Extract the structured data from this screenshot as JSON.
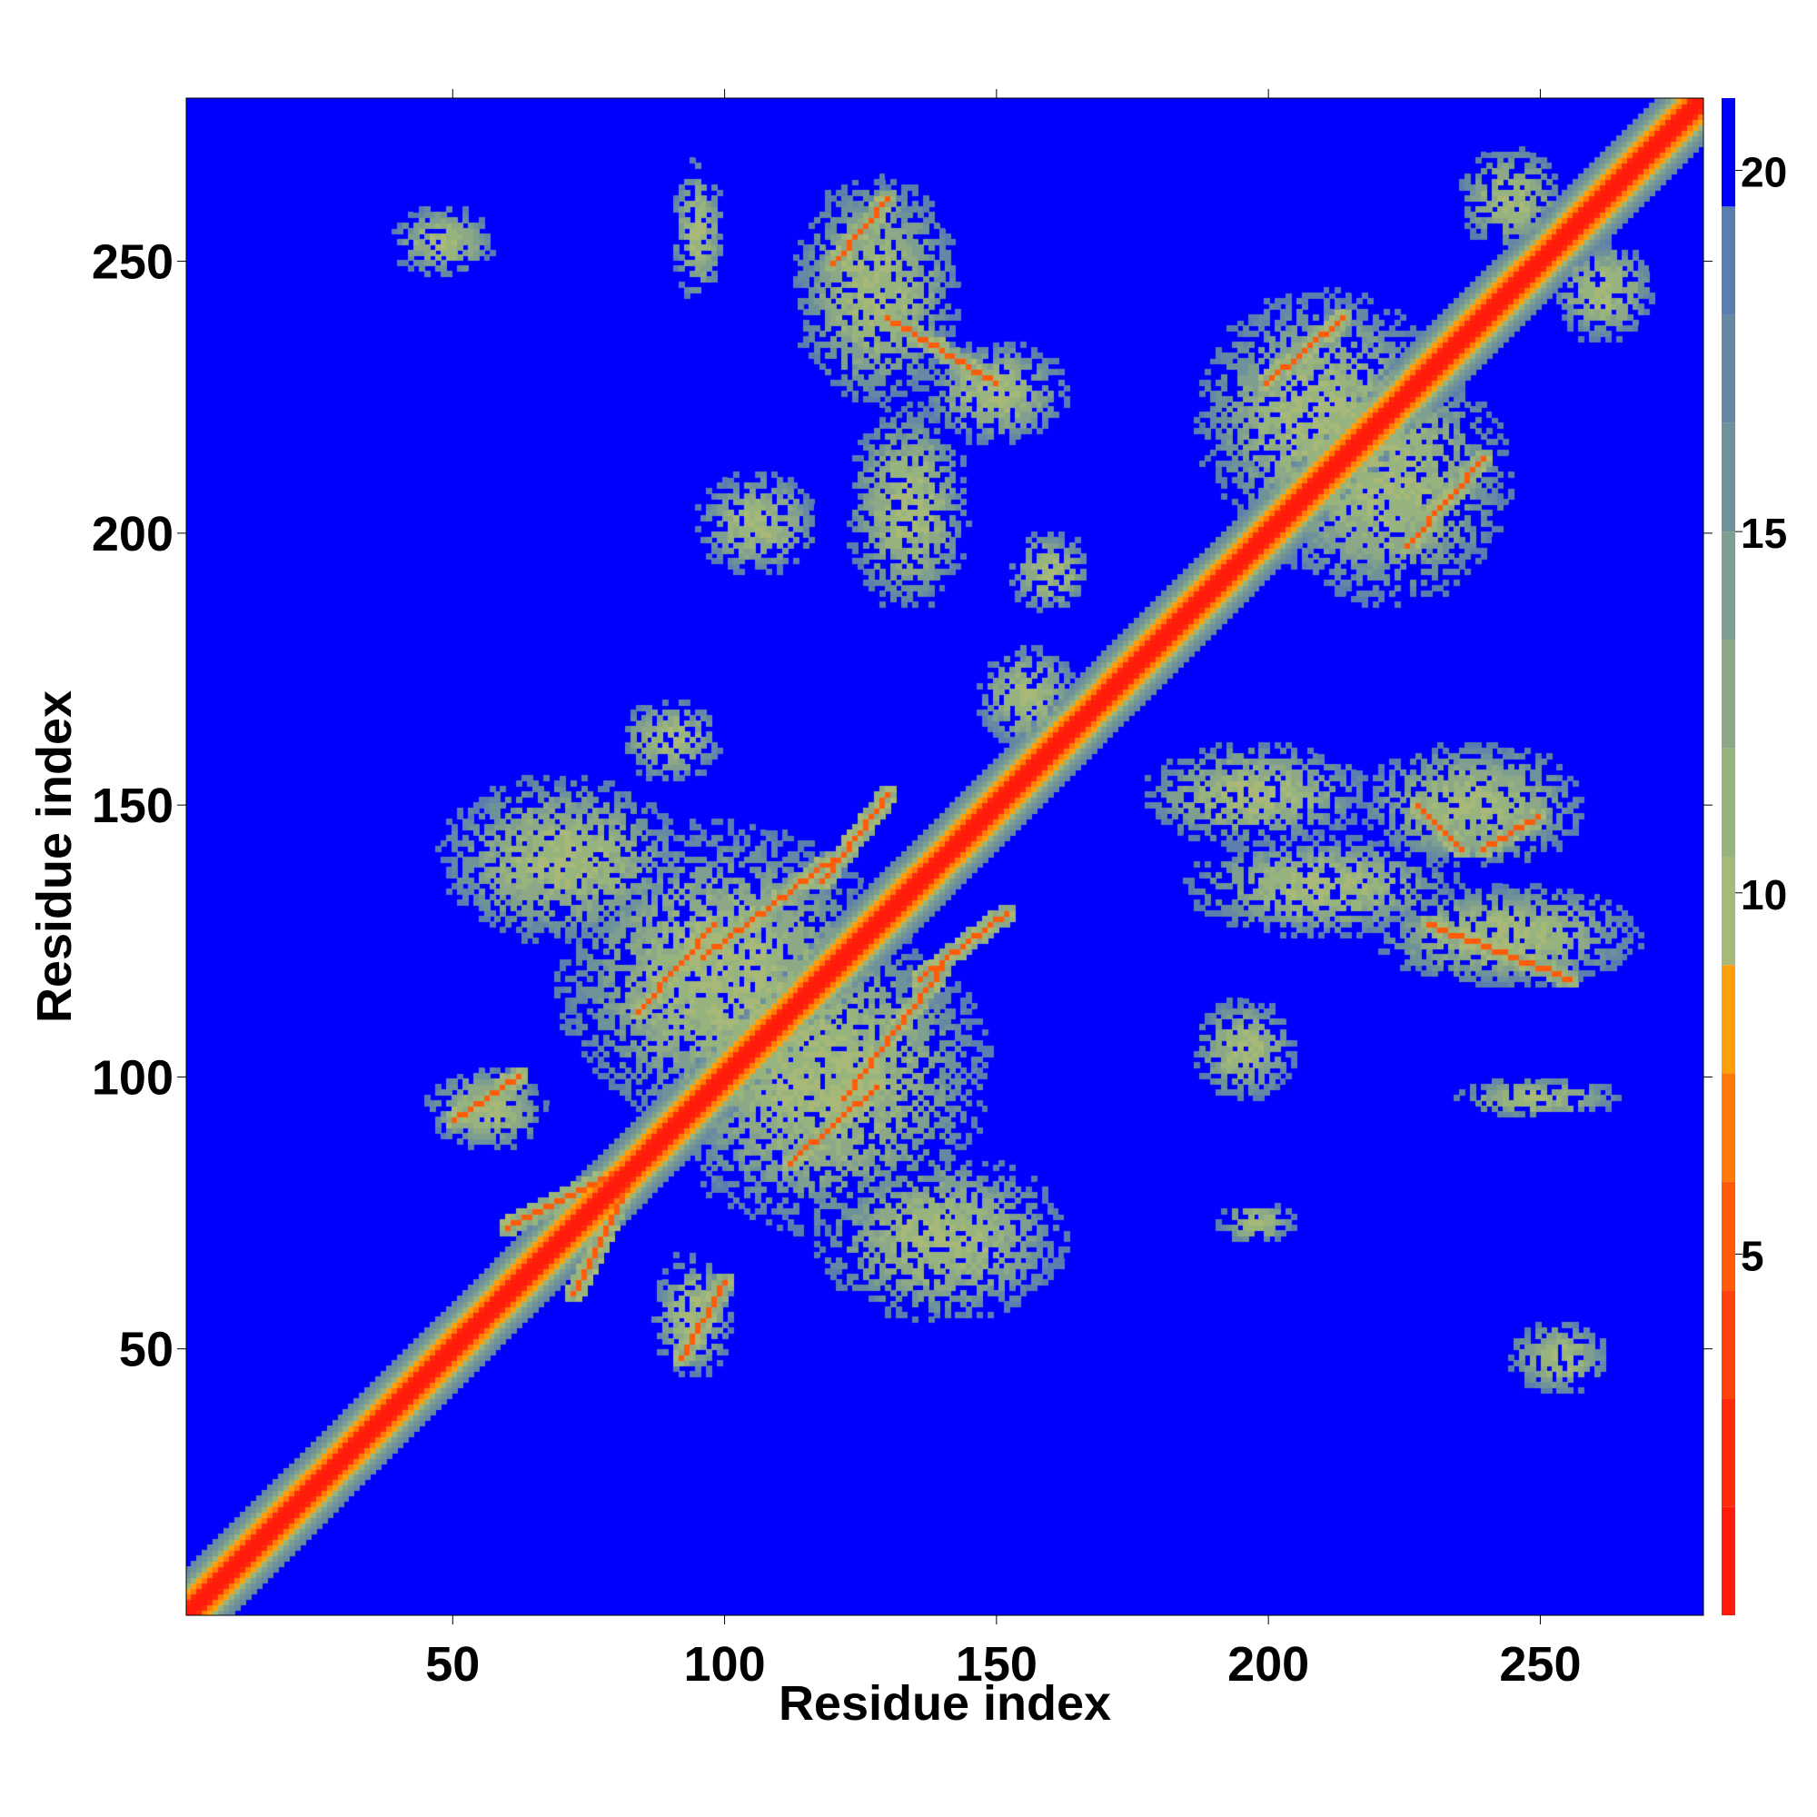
{
  "chart_data": {
    "type": "heatmap",
    "title": "",
    "xlabel": "Residue index",
    "ylabel": "Residue index",
    "xlim": [
      1,
      280
    ],
    "ylim": [
      1,
      280
    ],
    "x_ticks": [
      50,
      100,
      150,
      200,
      250
    ],
    "y_ticks": [
      50,
      100,
      150,
      200,
      250
    ],
    "colorbar": {
      "range": [
        0,
        21
      ],
      "ticks": [
        5,
        10,
        15,
        20
      ],
      "levels": [
        {
          "from": 0,
          "to": 1.5,
          "color": "#ff1a0a"
        },
        {
          "from": 1.5,
          "to": 3.0,
          "color": "#ff2a0a"
        },
        {
          "from": 3.0,
          "to": 4.5,
          "color": "#ff420a"
        },
        {
          "from": 4.5,
          "to": 6.0,
          "color": "#ff5c0a"
        },
        {
          "from": 6.0,
          "to": 7.5,
          "color": "#ff7a0a"
        },
        {
          "from": 7.5,
          "to": 9.0,
          "color": "#ffa00a"
        },
        {
          "from": 9.0,
          "to": 10.5,
          "color": "#a8b878"
        },
        {
          "from": 10.5,
          "to": 12.0,
          "color": "#98b47e"
        },
        {
          "from": 12.0,
          "to": 13.5,
          "color": "#8ca886"
        },
        {
          "from": 13.5,
          "to": 15.0,
          "color": "#7e9e90"
        },
        {
          "from": 15.0,
          "to": 16.5,
          "color": "#6e929a"
        },
        {
          "from": 16.5,
          "to": 18.0,
          "color": "#6688a4"
        },
        {
          "from": 18.0,
          "to": 19.5,
          "color": "#5a7eae"
        },
        {
          "from": 19.5,
          "to": 21.0,
          "color": "#0000ff"
        }
      ]
    },
    "background_color": "#0000ff",
    "diagonal_band": {
      "start": 1,
      "end": 280,
      "core_width": 2,
      "ring_width": 4,
      "halo_width": 8
    },
    "contact_segments": [
      {
        "x1": 50,
        "y1": 92,
        "x2": 62,
        "y2": 100
      },
      {
        "x1": 92,
        "y1": 48,
        "x2": 100,
        "y2": 62
      },
      {
        "x1": 84,
        "y1": 112,
        "x2": 98,
        "y2": 128
      },
      {
        "x1": 112,
        "y1": 84,
        "x2": 128,
        "y2": 98
      },
      {
        "x1": 118,
        "y1": 136,
        "x2": 130,
        "y2": 152
      },
      {
        "x1": 136,
        "y1": 118,
        "x2": 152,
        "y2": 130
      },
      {
        "x1": 96,
        "y1": 122,
        "x2": 120,
        "y2": 140
      },
      {
        "x1": 122,
        "y1": 96,
        "x2": 140,
        "y2": 120
      },
      {
        "x1": 60,
        "y1": 72,
        "x2": 80,
        "y2": 82
      },
      {
        "x1": 72,
        "y1": 60,
        "x2": 82,
        "y2": 80
      },
      {
        "x1": 120,
        "y1": 250,
        "x2": 130,
        "y2": 262
      },
      {
        "x1": 130,
        "y1": 240,
        "x2": 150,
        "y2": 228
      },
      {
        "x1": 228,
        "y1": 150,
        "x2": 236,
        "y2": 142
      },
      {
        "x1": 240,
        "y1": 142,
        "x2": 250,
        "y2": 148
      },
      {
        "x1": 230,
        "y1": 128,
        "x2": 256,
        "y2": 118
      },
      {
        "x1": 200,
        "y1": 228,
        "x2": 214,
        "y2": 240
      },
      {
        "x1": 226,
        "y1": 198,
        "x2": 240,
        "y2": 214
      }
    ],
    "contact_clusters": [
      {
        "xc": 48,
        "yc": 254,
        "rx": 10,
        "ry": 7
      },
      {
        "xc": 254,
        "yc": 48,
        "rx": 10,
        "ry": 7
      },
      {
        "xc": 95,
        "yc": 256,
        "rx": 5,
        "ry": 14
      },
      {
        "xc": 128,
        "yc": 245,
        "rx": 16,
        "ry": 22
      },
      {
        "xc": 150,
        "yc": 226,
        "rx": 14,
        "ry": 10
      },
      {
        "xc": 106,
        "yc": 202,
        "rx": 12,
        "ry": 10
      },
      {
        "xc": 134,
        "yc": 205,
        "rx": 12,
        "ry": 20
      },
      {
        "xc": 160,
        "yc": 193,
        "rx": 8,
        "ry": 8
      },
      {
        "xc": 210,
        "yc": 222,
        "rx": 24,
        "ry": 24
      },
      {
        "xc": 222,
        "yc": 210,
        "rx": 24,
        "ry": 24
      },
      {
        "xc": 245,
        "yc": 262,
        "rx": 10,
        "ry": 10
      },
      {
        "xc": 262,
        "yc": 245,
        "rx": 10,
        "ry": 10
      },
      {
        "xc": 100,
        "yc": 118,
        "rx": 32,
        "ry": 30
      },
      {
        "xc": 118,
        "yc": 100,
        "rx": 32,
        "ry": 30
      },
      {
        "xc": 70,
        "yc": 140,
        "rx": 24,
        "ry": 16
      },
      {
        "xc": 140,
        "yc": 70,
        "rx": 24,
        "ry": 16
      },
      {
        "xc": 56,
        "yc": 94,
        "rx": 12,
        "ry": 8
      },
      {
        "xc": 94,
        "yc": 56,
        "rx": 8,
        "ry": 12
      },
      {
        "xc": 198,
        "yc": 152,
        "rx": 22,
        "ry": 10
      },
      {
        "xc": 238,
        "yc": 150,
        "rx": 22,
        "ry": 12
      },
      {
        "xc": 210,
        "yc": 135,
        "rx": 26,
        "ry": 10
      },
      {
        "xc": 244,
        "yc": 126,
        "rx": 26,
        "ry": 10
      },
      {
        "xc": 196,
        "yc": 105,
        "rx": 10,
        "ry": 10
      },
      {
        "xc": 250,
        "yc": 96,
        "rx": 16,
        "ry": 4
      },
      {
        "xc": 198,
        "yc": 73,
        "rx": 8,
        "ry": 4
      },
      {
        "xc": 156,
        "yc": 170,
        "rx": 10,
        "ry": 10
      },
      {
        "xc": 90,
        "yc": 162,
        "rx": 10,
        "ry": 8
      }
    ]
  }
}
